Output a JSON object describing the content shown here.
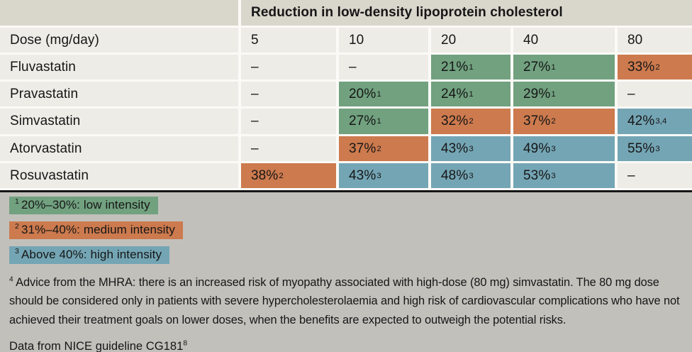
{
  "colors": {
    "low": "#71a17f",
    "medium": "#cc7a4e",
    "high": "#74a5b4",
    "header_bg": "#d9d6cc",
    "cell_bg": "#edece6",
    "footer_bg": "#c2c0bb"
  },
  "chart_data": {
    "type": "table",
    "title": "Reduction in low-density lipoprotein cholesterol",
    "dose_row_label": "Dose (mg/day)",
    "dose_columns": [
      "5",
      "10",
      "20",
      "40",
      "80"
    ],
    "intensity_levels": {
      "low": "20%–30%",
      "medium": "31%–40%",
      "high": "Above 40%"
    },
    "rows": [
      {
        "drug": "Fluvastatin",
        "cells": [
          {
            "text": "–",
            "level": null
          },
          {
            "text": "–",
            "level": null
          },
          {
            "text": "21%",
            "sup": "1",
            "level": "low"
          },
          {
            "text": "27%",
            "sup": "1",
            "level": "low"
          },
          {
            "text": "33%",
            "sup": "2",
            "level": "medium"
          }
        ]
      },
      {
        "drug": "Pravastatin",
        "cells": [
          {
            "text": "–",
            "level": null
          },
          {
            "text": "20%",
            "sup": "1",
            "level": "low"
          },
          {
            "text": "24%",
            "sup": "1",
            "level": "low"
          },
          {
            "text": "29%",
            "sup": "1",
            "level": "low"
          },
          {
            "text": "–",
            "level": null
          }
        ]
      },
      {
        "drug": "Simvastatin",
        "cells": [
          {
            "text": "–",
            "level": null
          },
          {
            "text": "27%",
            "sup": "1",
            "level": "low"
          },
          {
            "text": "32%",
            "sup": "2",
            "level": "medium"
          },
          {
            "text": "37%",
            "sup": "2",
            "level": "medium"
          },
          {
            "text": "42%",
            "sup": "3,4",
            "level": "high"
          }
        ]
      },
      {
        "drug": "Atorvastatin",
        "cells": [
          {
            "text": "–",
            "level": null
          },
          {
            "text": "37%",
            "sup": "2",
            "level": "medium"
          },
          {
            "text": "43%",
            "sup": "3",
            "level": "high"
          },
          {
            "text": "49%",
            "sup": "3",
            "level": "high"
          },
          {
            "text": "55%",
            "sup": "3",
            "level": "high"
          }
        ]
      },
      {
        "drug": "Rosuvastatin",
        "cells": [
          {
            "text": "38%",
            "sup": "2",
            "level": "medium"
          },
          {
            "text": "43%",
            "sup": "3",
            "level": "high"
          },
          {
            "text": "48%",
            "sup": "3",
            "level": "high"
          },
          {
            "text": "53%",
            "sup": "3",
            "level": "high"
          },
          {
            "text": "–",
            "level": null
          }
        ]
      }
    ]
  },
  "legend": [
    {
      "sup": "1",
      "label": "20%–30%: low intensity",
      "level": "low"
    },
    {
      "sup": "2",
      "label": "31%–40%: medium intensity",
      "level": "medium"
    },
    {
      "sup": "3",
      "label": "Above 40%: high intensity",
      "level": "high"
    }
  ],
  "footnotes": {
    "mhra_sup": "4",
    "mhra_text": "Advice from the MHRA: there is an increased risk of myopathy associated with high-dose (80 mg) simvastatin. The 80 mg dose should be considered only in patients with severe hypercholesterolaemia and high risk of cardiovascular complications who have not achieved their treatment goals on lower doses, when the benefits are expected to outweigh the potential risks.",
    "source_text": "Data from NICE guideline CG181",
    "source_sup": "8"
  }
}
